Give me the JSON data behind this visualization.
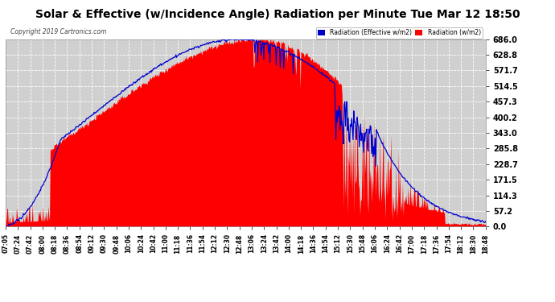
{
  "title": "Solar & Effective (w/Incidence Angle) Radiation per Minute Tue Mar 12 18:50",
  "copyright": "Copyright 2019 Cartronics.com",
  "legend_entries": [
    "Radiation (Effective w/m2)",
    "Radiation (w/m2)"
  ],
  "legend_colors": [
    "#0000cd",
    "#ff0000"
  ],
  "yticks": [
    0.0,
    57.2,
    114.3,
    171.5,
    228.7,
    285.8,
    343.0,
    400.2,
    457.3,
    514.5,
    571.7,
    628.8,
    686.0
  ],
  "ymax": 686.0,
  "ymin": 0.0,
  "bg_color": "#ffffff",
  "plot_bg_color": "#d0d0d0",
  "grid_color": "#ffffff",
  "bar_color": "#ff0000",
  "line_color": "#0000cd",
  "title_fontsize": 10,
  "axis_fontsize": 7,
  "xtick_fontsize": 5.5,
  "xtick_labels": [
    "07:05",
    "07:24",
    "07:42",
    "08:00",
    "08:18",
    "08:36",
    "08:54",
    "09:12",
    "09:30",
    "09:48",
    "10:06",
    "10:24",
    "10:42",
    "11:00",
    "11:18",
    "11:36",
    "11:54",
    "12:12",
    "12:30",
    "12:48",
    "13:06",
    "13:24",
    "13:42",
    "14:00",
    "14:18",
    "14:36",
    "14:54",
    "15:12",
    "15:30",
    "15:48",
    "16:06",
    "16:24",
    "16:42",
    "17:00",
    "17:18",
    "17:36",
    "17:54",
    "18:12",
    "18:30",
    "18:48"
  ]
}
